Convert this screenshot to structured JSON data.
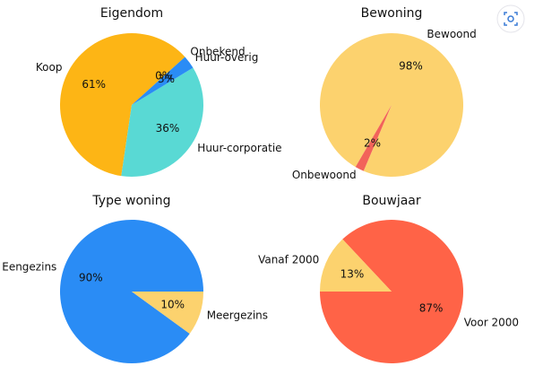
{
  "chart_data": [
    {
      "type": "pie",
      "title": "Eigendom",
      "categories": [
        "Koop",
        "Huur-corporatie",
        "Huur-overig",
        "Onbekend"
      ],
      "values": [
        61,
        36,
        3,
        0
      ],
      "value_labels": [
        "61%",
        "36%",
        "3%",
        "0%"
      ],
      "colors": [
        "#fdb515",
        "#59d9d4",
        "#2a8cf5",
        "#7b68ee"
      ]
    },
    {
      "type": "pie",
      "title": "Bewoning",
      "categories": [
        "Bewoond",
        "Onbewoond"
      ],
      "values": [
        98,
        2
      ],
      "value_labels": [
        "98%",
        "2%"
      ],
      "colors": [
        "#fcd26e",
        "#f2635a"
      ]
    },
    {
      "type": "pie",
      "title": "Type woning",
      "categories": [
        "Eengezins",
        "Meergezins"
      ],
      "values": [
        90,
        10
      ],
      "value_labels": [
        "90%",
        "10%"
      ],
      "colors": [
        "#2a8cf5",
        "#fcd26e"
      ]
    },
    {
      "type": "pie",
      "title": "Bouwjaar",
      "categories": [
        "Voor 2000",
        "Vanaf 2000"
      ],
      "values": [
        87,
        13
      ],
      "value_labels": [
        "87%",
        "13%"
      ],
      "colors": [
        "#ff6347",
        "#fcd26e"
      ]
    }
  ]
}
